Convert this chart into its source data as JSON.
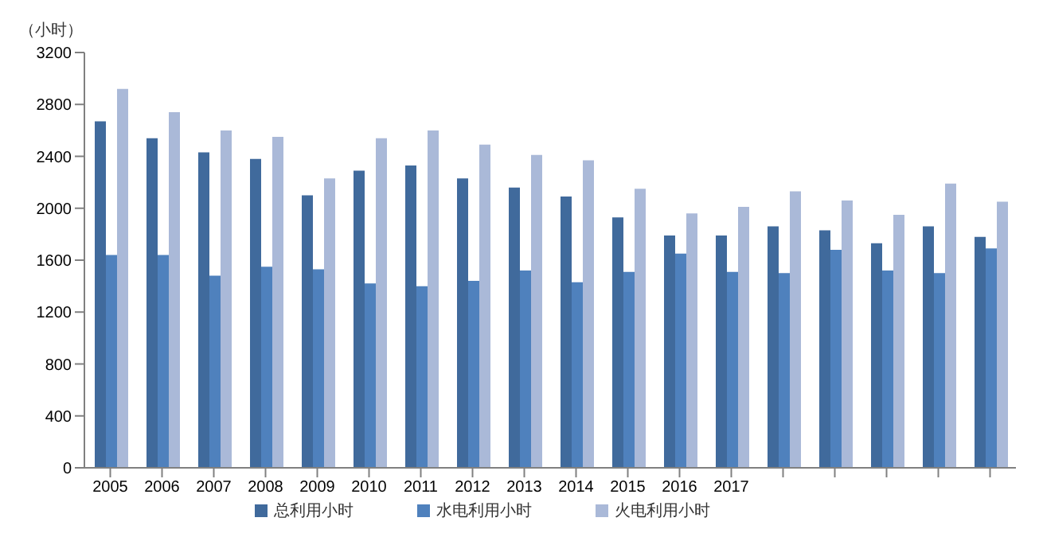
{
  "chart_data": {
    "type": "bar",
    "ylabel": "（小时）",
    "categories": [
      "2005",
      "2006",
      "2007",
      "2008",
      "2009",
      "2010",
      "2011",
      "2012",
      "2013",
      "2014",
      "2015",
      "2016",
      "2017",
      null,
      null,
      null,
      null,
      null
    ],
    "series": [
      {
        "name": "总利用小时",
        "color": "#406a9c",
        "values": [
          2670,
          2540,
          2430,
          2380,
          2100,
          2290,
          2330,
          2230,
          2160,
          2090,
          1930,
          1790,
          1790,
          1860,
          1830,
          1730,
          1860,
          1780
        ]
      },
      {
        "name": "水电利用小时",
        "color": "#4f81bd",
        "values": [
          1640,
          1640,
          1480,
          1550,
          1530,
          1420,
          1400,
          1440,
          1520,
          1430,
          1510,
          1650,
          1510,
          1500,
          1680,
          1520,
          1500,
          1690
        ]
      },
      {
        "name": "火电利用小时",
        "color": "#aab9d8",
        "values": [
          2920,
          2740,
          2600,
          2550,
          2230,
          2540,
          2600,
          2490,
          2410,
          2370,
          2150,
          1960,
          2010,
          2130,
          2060,
          1950,
          2190,
          2050
        ]
      }
    ],
    "ylim": [
      0,
      3200
    ],
    "yticks": [
      0,
      400,
      800,
      1200,
      1600,
      2000,
      2400,
      2800,
      3200
    ],
    "grid": false,
    "legend": "bottom"
  }
}
